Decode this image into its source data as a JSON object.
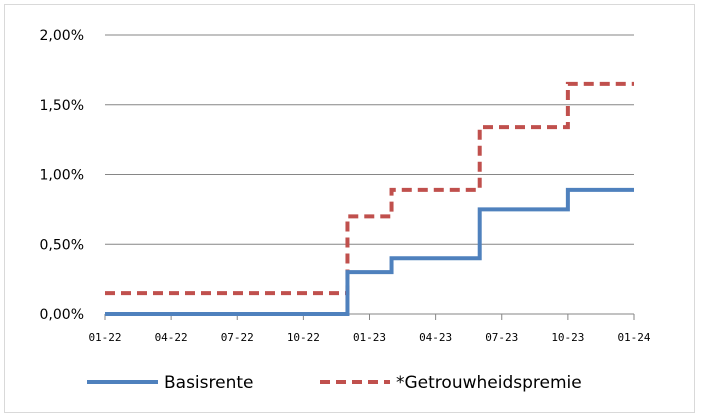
{
  "chart_data": {
    "type": "line",
    "step": true,
    "x_ticks": [
      "01-22",
      "04-22",
      "07-22",
      "10-22",
      "01-23",
      "04-23",
      "07-23",
      "10-23",
      "01-24"
    ],
    "ylim": [
      0,
      2.0
    ],
    "y_ticks": [
      {
        "value": 0.0,
        "label": "0,00%"
      },
      {
        "value": 0.5,
        "label": "0,50%"
      },
      {
        "value": 1.0,
        "label": "1,00%"
      },
      {
        "value": 1.5,
        "label": "1,50%"
      },
      {
        "value": 2.0,
        "label": "2,00%"
      }
    ],
    "grid": true,
    "legend_position": "bottom",
    "series": [
      {
        "name": "Basisrente",
        "color": "#4f81bd",
        "style": "solid",
        "points": [
          {
            "x": "2022-01",
            "y": 0.0
          },
          {
            "x": "2022-12",
            "y": 0.3
          },
          {
            "x": "2023-02",
            "y": 0.4
          },
          {
            "x": "2023-06",
            "y": 0.75
          },
          {
            "x": "2023-10",
            "y": 0.89
          },
          {
            "x": "2024-01",
            "y": 0.89
          }
        ]
      },
      {
        "name": "*Getrouwheidspremie",
        "color": "#c0504d",
        "style": "dashed",
        "points": [
          {
            "x": "2022-01",
            "y": 0.15
          },
          {
            "x": "2022-12",
            "y": 0.7
          },
          {
            "x": "2023-02",
            "y": 0.89
          },
          {
            "x": "2023-06",
            "y": 1.34
          },
          {
            "x": "2023-10",
            "y": 1.65
          },
          {
            "x": "2024-01",
            "y": 1.65
          }
        ]
      }
    ]
  }
}
